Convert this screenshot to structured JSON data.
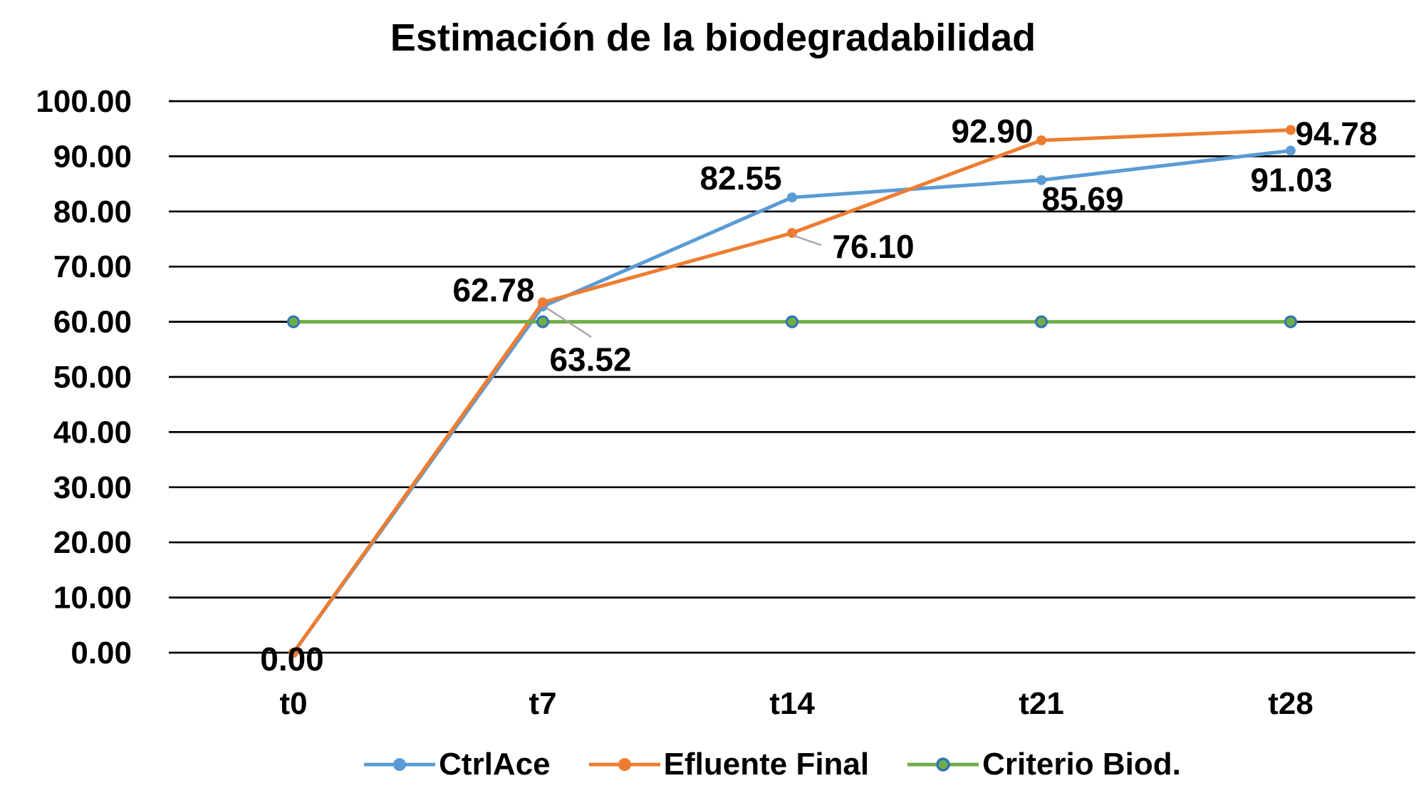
{
  "chart_data": {
    "type": "line",
    "title": "Estimación de la biodegradabilidad",
    "categories": [
      "t0",
      "t7",
      "t14",
      "t21",
      "t28"
    ],
    "series": [
      {
        "name": "CtrlAce",
        "color": "#5B9BD5",
        "marker": "circle",
        "values": [
          0.0,
          62.78,
          82.55,
          85.69,
          91.03
        ]
      },
      {
        "name": "Efluente Final",
        "color": "#ED7D31",
        "marker": "circle",
        "values": [
          0.0,
          63.52,
          76.1,
          92.9,
          94.78
        ]
      },
      {
        "name": "Criterio Biod.",
        "color": "#70AD47",
        "marker": "circle",
        "marker_ring": "#2E75B6",
        "values": [
          60.0,
          60.0,
          60.0,
          60.0,
          60.0
        ]
      }
    ],
    "data_labels_shown": {
      "CtrlAce": [
        "0.00",
        "62.78",
        "82.55",
        "85.69",
        "91.03"
      ],
      "Efluente Final": [
        "63.52",
        "76.10",
        "92.90",
        "94.78"
      ],
      "Criterio Biod.": []
    },
    "ylim": [
      0,
      100
    ],
    "ytick_step": 10,
    "ytick_labels": [
      "0.00",
      "10.00",
      "20.00",
      "30.00",
      "40.00",
      "50.00",
      "60.00",
      "70.00",
      "80.00",
      "90.00",
      "100.00"
    ],
    "grid": "horizontal",
    "grid_color": "#000000",
    "leader_line_color": "#A6A6A6",
    "text_color": "#000000",
    "background": "#FFFFFF",
    "legend_position": "bottom"
  }
}
